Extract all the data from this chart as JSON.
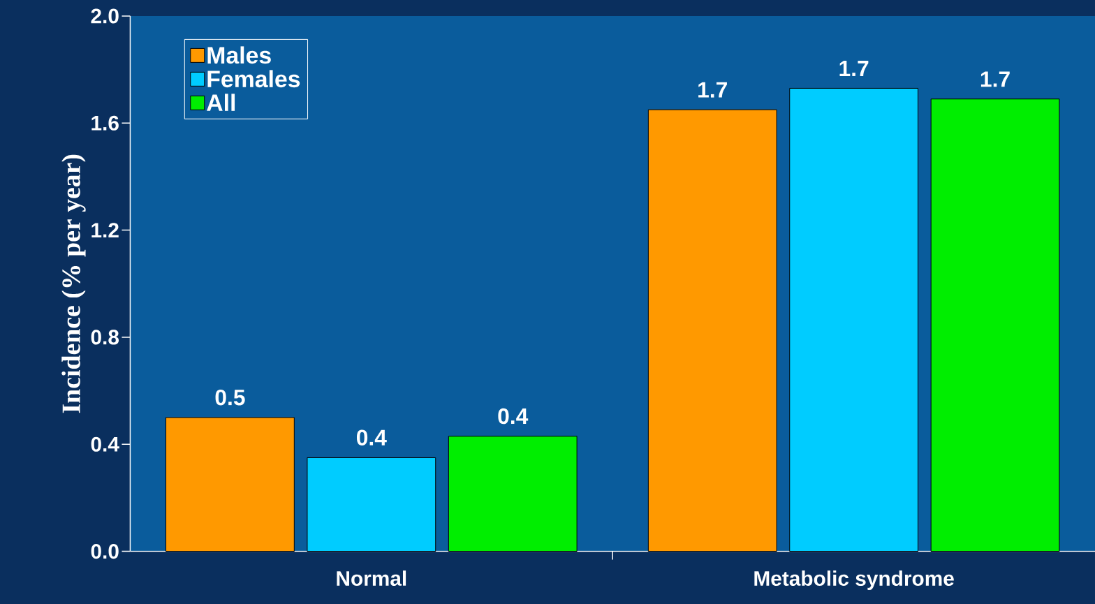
{
  "chart_data": {
    "type": "bar",
    "ylabel": "Incidence (% per year)",
    "categories": [
      "Normal",
      "Metabolic syndrome"
    ],
    "series": [
      {
        "name": "Males",
        "color": "#ff9900",
        "values": [
          0.5,
          1.65
        ],
        "value_labels": [
          "0.5",
          "1.7"
        ]
      },
      {
        "name": "Females",
        "color": "#00ccff",
        "values": [
          0.35,
          1.73
        ],
        "value_labels": [
          "0.4",
          "1.7"
        ]
      },
      {
        "name": "All",
        "color": "#00ee00",
        "values": [
          0.43,
          1.69
        ],
        "value_labels": [
          "0.4",
          "1.7"
        ]
      }
    ],
    "ylim": [
      0,
      2.0
    ],
    "yticks": [
      "0.0",
      "0.4",
      "0.8",
      "1.2",
      "1.6",
      "2.0"
    ],
    "legend": "top left",
    "grid": false
  }
}
